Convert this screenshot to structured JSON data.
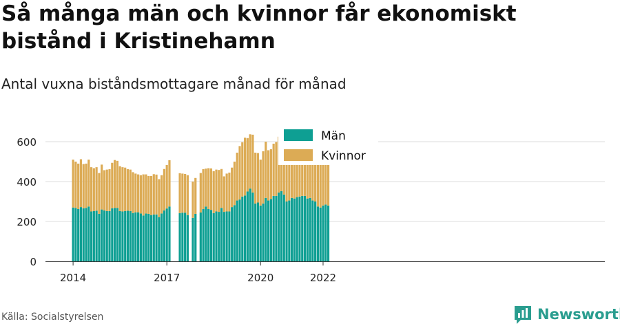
{
  "title": "Så många män och kvinnor får ekonomiskt bistånd i Kristinehamn",
  "subtitle": "Antal vuxna biståndsmottagare månad för månad",
  "source": "Källa: Socialstyrelsen",
  "brand": "Newsworthy",
  "chart_data": {
    "type": "bar",
    "stacked": true,
    "x_unit": "month",
    "x_start": "2014-01",
    "x_end": "2022-03",
    "xticks": [
      "2014",
      "2017",
      "2020",
      "2022"
    ],
    "yticks": [
      0,
      200,
      400,
      600
    ],
    "ylim": [
      0,
      700
    ],
    "grid": true,
    "legend_position": "top-center",
    "colors": {
      "man": "#0e9f93",
      "kvinnor": "#dcab55"
    },
    "series": [
      {
        "name": "Män",
        "values": [
          270,
          268,
          262,
          272,
          266,
          268,
          275,
          250,
          252,
          254,
          238,
          260,
          255,
          252,
          252,
          266,
          268,
          268,
          252,
          250,
          252,
          254,
          252,
          242,
          246,
          246,
          240,
          230,
          240,
          238,
          232,
          235,
          235,
          222,
          240,
          255,
          265,
          275,
          null,
          null,
          null,
          242,
          244,
          244,
          232,
          null,
          218,
          238,
          null,
          245,
          262,
          275,
          262,
          258,
          242,
          250,
          248,
          268,
          248,
          250,
          250,
          272,
          282,
          305,
          310,
          325,
          330,
          350,
          365,
          345,
          290,
          295,
          280,
          290,
          318,
          305,
          312,
          328,
          328,
          345,
          352,
          335,
          300,
          305,
          318,
          315,
          322,
          325,
          328,
          328,
          315,
          318,
          305,
          300,
          275,
          270,
          280,
          285,
          280
        ]
      },
      {
        "name": "Kvinnor",
        "values": [
          240,
          232,
          228,
          240,
          222,
          222,
          235,
          222,
          215,
          218,
          205,
          225,
          202,
          208,
          210,
          228,
          240,
          236,
          225,
          222,
          218,
          208,
          208,
          205,
          194,
          190,
          192,
          206,
          196,
          190,
          196,
          202,
          200,
          190,
          192,
          208,
          218,
          232,
          null,
          null,
          null,
          200,
          196,
          194,
          200,
          null,
          182,
          180,
          null,
          198,
          200,
          190,
          205,
          208,
          210,
          210,
          210,
          195,
          178,
          190,
          195,
          198,
          218,
          240,
          268,
          272,
          290,
          268,
          272,
          290,
          255,
          248,
          230,
          262,
          282,
          252,
          250,
          262,
          270,
          280,
          282,
          262,
          242,
          250,
          258,
          265,
          275,
          258,
          262,
          260,
          258,
          262,
          250,
          238,
          220,
          225,
          225,
          240,
          245
        ]
      }
    ]
  }
}
